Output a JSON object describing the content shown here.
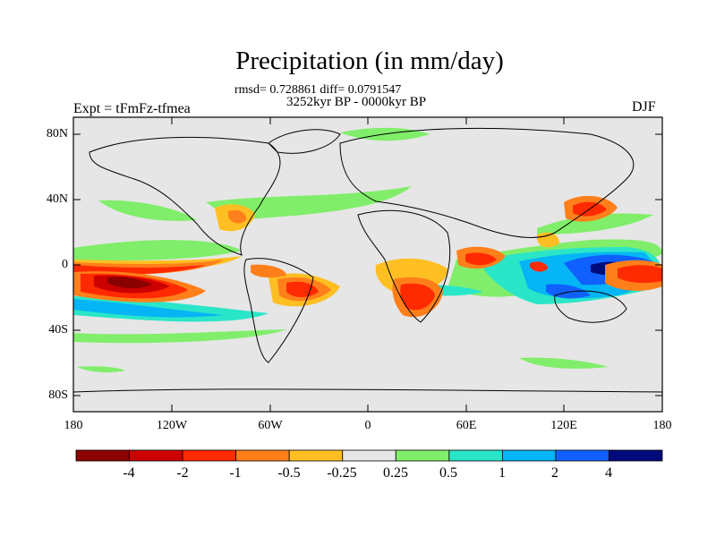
{
  "title": "Precipitation (in mm/day)",
  "stats_line": "rmsd= 0.728861 diff= 0.0791547",
  "period_line": "3252kyr BP - 0000kyr BP",
  "experiment_label": "Expt = tFmFz-tfmea",
  "season_label": "DJF",
  "latitude_ticks": [
    "80N",
    "40N",
    "0",
    "40S",
    "80S"
  ],
  "longitude_ticks": [
    "180",
    "120W",
    "60W",
    "0",
    "60E",
    "120E",
    "180"
  ],
  "colorbar": {
    "labels": [
      "-4",
      "-2",
      "-1",
      "-0.5",
      "-0.25",
      "0.25",
      "0.5",
      "1",
      "2",
      "4"
    ],
    "colors": [
      "#8b0000",
      "#cd0000",
      "#ff2a00",
      "#ff7f1a",
      "#ffbf22",
      "#e6e6e6",
      "#80ee6a",
      "#2ae6c8",
      "#05b5f5",
      "#1060ff",
      "#000a7a"
    ]
  }
}
